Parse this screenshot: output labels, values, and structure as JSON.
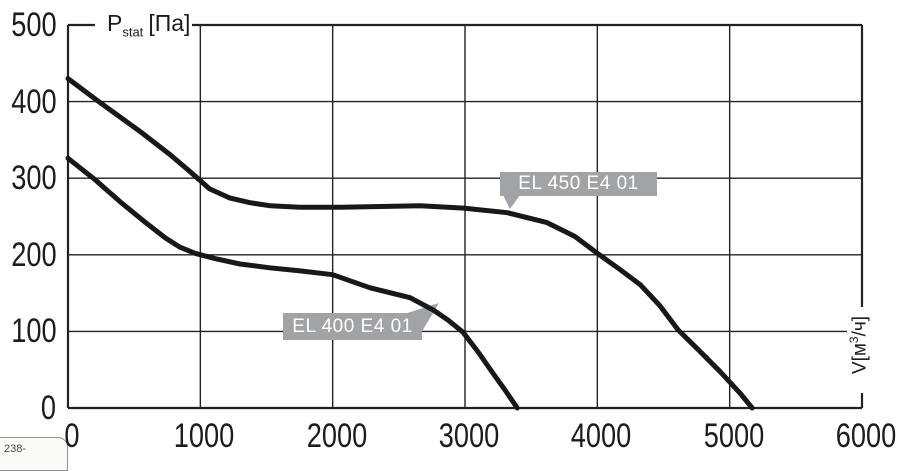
{
  "page": {
    "badge": "238-"
  },
  "chart_data": {
    "type": "line",
    "title": {
      "symbol": "P",
      "subscript": "stat",
      "unit": "[Па]"
    },
    "ylabel": "Pstat [Па]",
    "xlabel": "V[м3/ч]",
    "x_axis_label": {
      "prefix": "V[м",
      "superscript": "3",
      "suffix": "/ч]"
    },
    "xlim": [
      0,
      6000
    ],
    "ylim": [
      0,
      500
    ],
    "x_ticks": [
      0,
      1000,
      2000,
      3000,
      4000,
      5000,
      6000
    ],
    "y_ticks": [
      0,
      100,
      200,
      300,
      400,
      500
    ],
    "grid": true,
    "legend_position": "callouts-on-curves",
    "series": [
      {
        "name": "EL 450 E4 01",
        "points": [
          [
            0,
            430
          ],
          [
            240,
            399
          ],
          [
            545,
            361
          ],
          [
            770,
            331
          ],
          [
            920,
            309
          ],
          [
            1070,
            286
          ],
          [
            1225,
            274
          ],
          [
            1375,
            268
          ],
          [
            1530,
            264
          ],
          [
            1750,
            262
          ],
          [
            2060,
            262
          ],
          [
            2360,
            263
          ],
          [
            2660,
            264
          ],
          [
            2990,
            261
          ],
          [
            3320,
            255
          ],
          [
            3620,
            242
          ],
          [
            3830,
            224
          ],
          [
            4000,
            202
          ],
          [
            4170,
            181
          ],
          [
            4325,
            161
          ],
          [
            4475,
            133
          ],
          [
            4610,
            102
          ],
          [
            4775,
            74
          ],
          [
            4925,
            48
          ],
          [
            5080,
            19
          ],
          [
            5170,
            0
          ]
        ]
      },
      {
        "name": "EL 400 E4 01",
        "points": [
          [
            0,
            326
          ],
          [
            205,
            298
          ],
          [
            395,
            269
          ],
          [
            580,
            243
          ],
          [
            735,
            222
          ],
          [
            845,
            210
          ],
          [
            960,
            202
          ],
          [
            1110,
            195
          ],
          [
            1300,
            188
          ],
          [
            1525,
            183
          ],
          [
            1755,
            179
          ],
          [
            2000,
            174
          ],
          [
            2280,
            157
          ],
          [
            2585,
            144
          ],
          [
            2760,
            128
          ],
          [
            2870,
            115
          ],
          [
            2985,
            99
          ],
          [
            3100,
            73
          ],
          [
            3205,
            47
          ],
          [
            3300,
            24
          ],
          [
            3395,
            0
          ]
        ]
      }
    ],
    "colors": {
      "curve": "#17181a",
      "grid": "#222222",
      "callout_bg": "#a1a4a7",
      "callout_text": "#ffffff",
      "background": "#ffffff"
    }
  }
}
